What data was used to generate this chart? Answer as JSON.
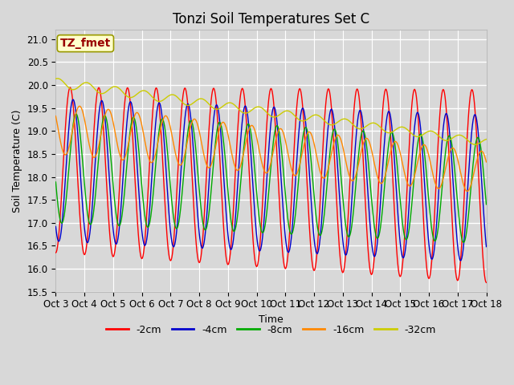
{
  "title": "Tonzi Soil Temperatures Set C",
  "xlabel": "Time",
  "ylabel": "Soil Temperature (C)",
  "ylim": [
    15.5,
    21.2
  ],
  "background_color": "#d8d8d8",
  "plot_bg_color": "#d8d8d8",
  "grid_color": "#ffffff",
  "annotation_text": "TZ_fmet",
  "annotation_bg": "#ffffcc",
  "annotation_border": "#999900",
  "annotation_text_color": "#990000",
  "series_colors": [
    "#ff0000",
    "#0000cc",
    "#00aa00",
    "#ff8800",
    "#cccc00"
  ],
  "series_labels": [
    "-2cm",
    "-4cm",
    "-8cm",
    "-16cm",
    "-32cm"
  ],
  "x_tick_labels": [
    "Oct 3",
    "Oct 4",
    "Oct 5",
    "Oct 6",
    "Oct 7",
    "Oct 8",
    "Oct 9",
    "Oct 10",
    "Oct 11",
    "Oct 12",
    "Oct 13",
    "Oct 14",
    "Oct 15",
    "Oct 16",
    "Oct 17",
    "Oct 18"
  ],
  "title_fontsize": 12,
  "axis_label_fontsize": 9,
  "tick_fontsize": 8.5,
  "legend_fontsize": 9
}
